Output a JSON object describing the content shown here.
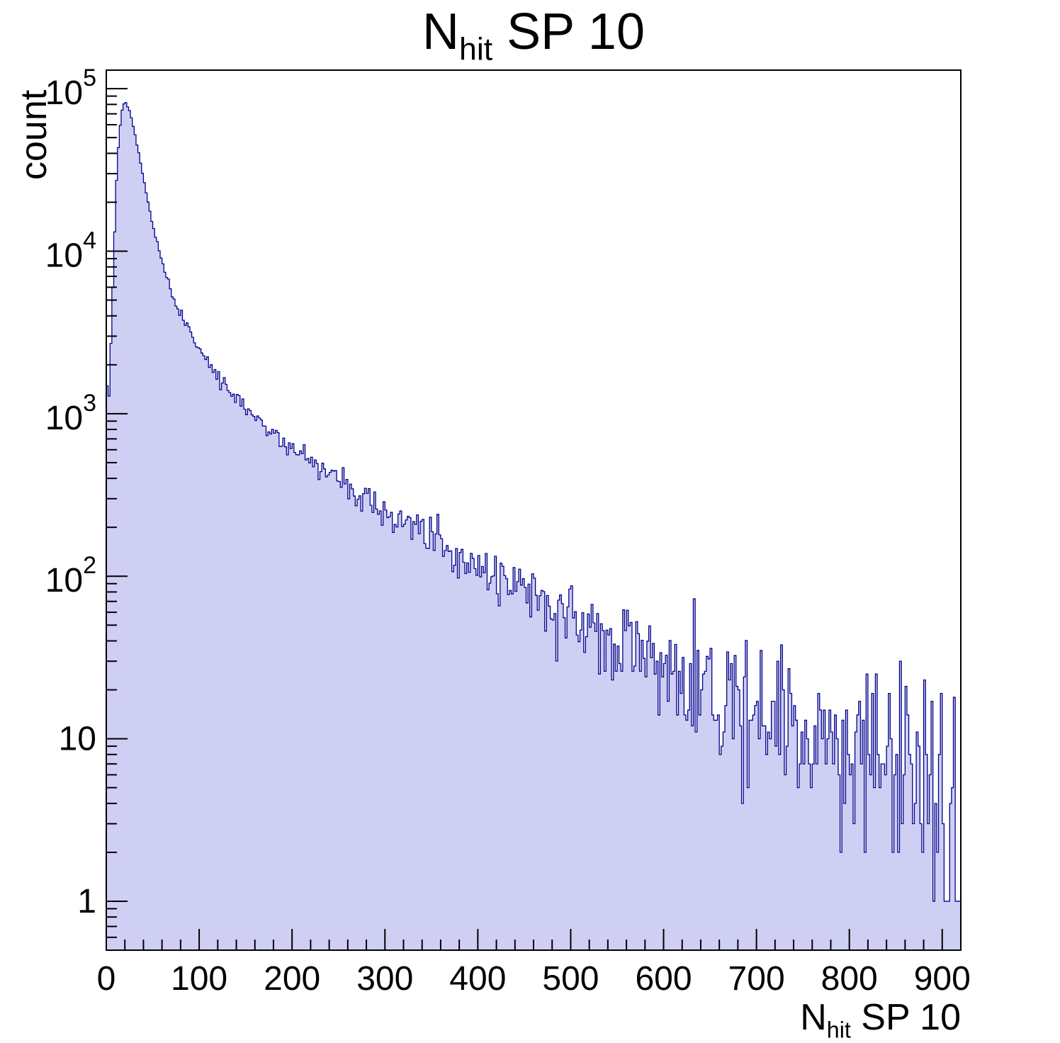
{
  "chart_data": {
    "type": "bar",
    "subtype": "step-histogram-log-y",
    "title": {
      "base": "N",
      "sub": "hit",
      "rest": " SP 10"
    },
    "xlabel": {
      "base": "N",
      "sub": "hit",
      "rest": " SP 10"
    },
    "ylabel": "count",
    "xlim": [
      0,
      920
    ],
    "ylim": [
      0.5,
      130000
    ],
    "yscale": "log",
    "grid": false,
    "legend": "none",
    "bin_width": 2,
    "noise_seed": 7,
    "noise_scale": 2.0,
    "x_major_values": [
      0,
      100,
      200,
      300,
      400,
      500,
      600,
      700,
      800,
      900
    ],
    "x_tick_labels": [
      "0",
      "100",
      "200",
      "300",
      "400",
      "500",
      "600",
      "700",
      "800",
      "900"
    ],
    "x_minor_step": 20,
    "y_major_ticks": [
      {
        "v": 1,
        "base": "1",
        "sup": ""
      },
      {
        "v": 10,
        "base": "10",
        "sup": ""
      },
      {
        "v": 100,
        "base": "10",
        "sup": "2"
      },
      {
        "v": 1000,
        "base": "10",
        "sup": "3"
      },
      {
        "v": 10000,
        "base": "10",
        "sup": "4"
      },
      {
        "v": 100000,
        "base": "10",
        "sup": "5"
      }
    ],
    "anchors": [
      [
        0,
        2200
      ],
      [
        2,
        1100
      ],
      [
        4,
        1600
      ],
      [
        6,
        4200
      ],
      [
        8,
        9000
      ],
      [
        10,
        20000
      ],
      [
        12,
        35000
      ],
      [
        14,
        52000
      ],
      [
        16,
        68000
      ],
      [
        18,
        78000
      ],
      [
        20,
        82000
      ],
      [
        22,
        81000
      ],
      [
        24,
        76000
      ],
      [
        26,
        70000
      ],
      [
        28,
        62000
      ],
      [
        30,
        55000
      ],
      [
        33,
        45000
      ],
      [
        36,
        37000
      ],
      [
        40,
        28000
      ],
      [
        44,
        21500
      ],
      [
        48,
        16500
      ],
      [
        52,
        13000
      ],
      [
        56,
        10500
      ],
      [
        60,
        8600
      ],
      [
        65,
        6900
      ],
      [
        70,
        5600
      ],
      [
        75,
        4700
      ],
      [
        80,
        4100
      ],
      [
        85,
        3550
      ],
      [
        90,
        3150
      ],
      [
        95,
        2800
      ],
      [
        100,
        2500
      ],
      [
        110,
        2050
      ],
      [
        120,
        1700
      ],
      [
        130,
        1430
      ],
      [
        140,
        1230
      ],
      [
        150,
        1070
      ],
      [
        160,
        940
      ],
      [
        170,
        840
      ],
      [
        180,
        755
      ],
      [
        190,
        690
      ],
      [
        200,
        630
      ],
      [
        210,
        575
      ],
      [
        220,
        525
      ],
      [
        230,
        480
      ],
      [
        240,
        440
      ],
      [
        250,
        400
      ],
      [
        260,
        365
      ],
      [
        270,
        335
      ],
      [
        280,
        305
      ],
      [
        290,
        280
      ],
      [
        300,
        258
      ],
      [
        310,
        238
      ],
      [
        320,
        220
      ],
      [
        330,
        203
      ],
      [
        340,
        188
      ],
      [
        350,
        174
      ],
      [
        360,
        160
      ],
      [
        370,
        148
      ],
      [
        380,
        137
      ],
      [
        390,
        127
      ],
      [
        400,
        118
      ],
      [
        410,
        110
      ],
      [
        420,
        102
      ],
      [
        430,
        95
      ],
      [
        440,
        88
      ],
      [
        450,
        82
      ],
      [
        460,
        76
      ],
      [
        470,
        71
      ],
      [
        480,
        66
      ],
      [
        490,
        61
      ],
      [
        500,
        57
      ],
      [
        510,
        53
      ],
      [
        520,
        50
      ],
      [
        530,
        46
      ],
      [
        540,
        43
      ],
      [
        550,
        40
      ],
      [
        560,
        38
      ],
      [
        570,
        35
      ],
      [
        580,
        33
      ],
      [
        590,
        31
      ],
      [
        600,
        29
      ],
      [
        620,
        25
      ],
      [
        640,
        22
      ],
      [
        660,
        19.5
      ],
      [
        680,
        17
      ],
      [
        700,
        15.5
      ],
      [
        720,
        14
      ],
      [
        740,
        12.5
      ],
      [
        760,
        11.5
      ],
      [
        780,
        10.5
      ],
      [
        800,
        9.5
      ],
      [
        820,
        8.5
      ],
      [
        840,
        7.5
      ],
      [
        860,
        6.5
      ],
      [
        880,
        5.5
      ],
      [
        890,
        4.5
      ],
      [
        895,
        3
      ],
      [
        900,
        2.2
      ],
      [
        905,
        1.8
      ],
      [
        910,
        2.5
      ],
      [
        915,
        1.5
      ],
      [
        920,
        2
      ]
    ],
    "colors": {
      "fill": "#cfcff4",
      "line": "#00008b",
      "frame": "#000000",
      "background": "#ffffff"
    }
  }
}
